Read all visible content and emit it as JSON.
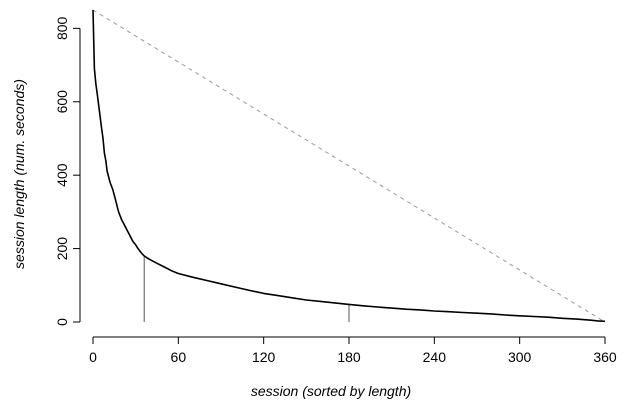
{
  "chart_data": {
    "type": "line",
    "xlabel": "session (sorted by length)",
    "ylabel": "session length (num. seconds)",
    "xlim": [
      0,
      360
    ],
    "ylim": [
      0,
      850
    ],
    "x_ticks": [
      0,
      60,
      120,
      180,
      240,
      300,
      360
    ],
    "y_ticks": [
      0,
      200,
      400,
      600,
      800
    ],
    "grid": false,
    "series": [
      {
        "x": [
          0,
          1,
          2,
          3,
          4,
          5,
          6,
          7,
          8,
          9,
          10,
          12,
          14,
          16,
          18,
          20,
          22,
          24,
          26,
          28,
          30,
          32,
          34,
          36,
          38,
          40,
          45,
          50,
          55,
          60,
          70,
          80,
          90,
          100,
          110,
          120,
          130,
          140,
          150,
          160,
          170,
          180,
          190,
          200,
          210,
          220,
          230,
          240,
          250,
          260,
          270,
          280,
          290,
          300,
          310,
          320,
          330,
          340,
          350,
          355,
          360
        ],
        "y": [
          850,
          690,
          650,
          620,
          590,
          560,
          530,
          500,
          460,
          440,
          410,
          380,
          360,
          330,
          300,
          280,
          265,
          250,
          235,
          220,
          210,
          198,
          188,
          180,
          175,
          170,
          160,
          150,
          140,
          132,
          122,
          113,
          104,
          95,
          86,
          78,
          72,
          66,
          60,
          56,
          52,
          48,
          44,
          41,
          38,
          35,
          33,
          30,
          28,
          26,
          24,
          22,
          19,
          17,
          15,
          13,
          10,
          8,
          5,
          3,
          2
        ]
      },
      {
        "x": [
          0,
          360
        ],
        "y": [
          850,
          0
        ]
      }
    ],
    "markers": [
      {
        "x": 36,
        "y": 180
      },
      {
        "x": 180,
        "y": 48
      }
    ]
  }
}
